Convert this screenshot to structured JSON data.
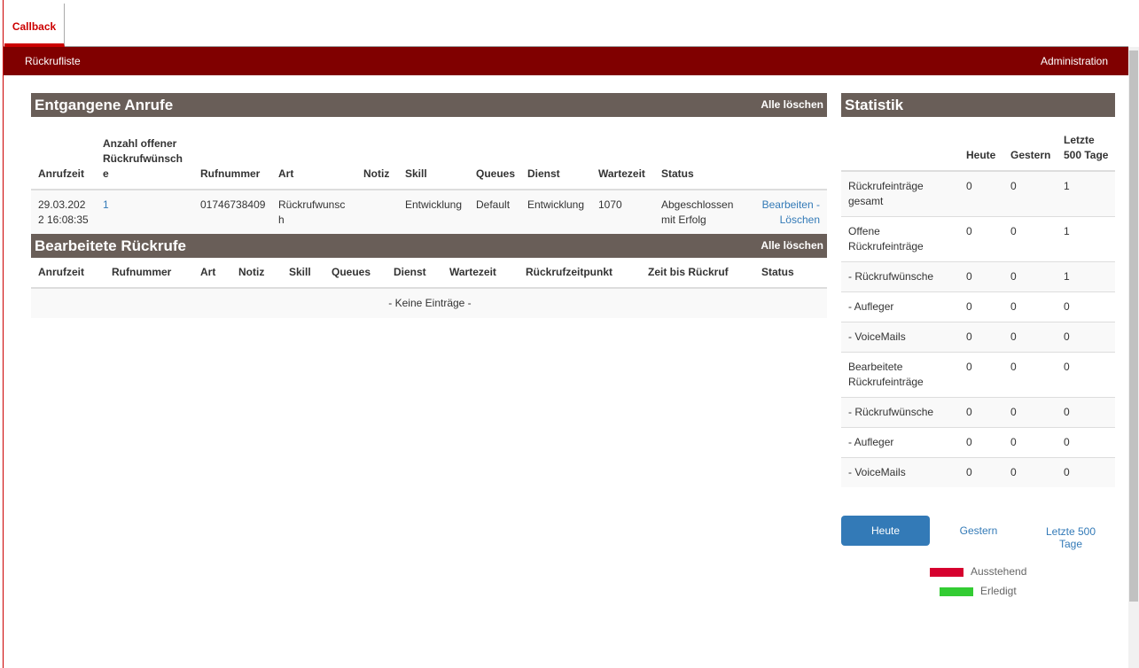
{
  "tabs": [
    {
      "label": "Callback"
    }
  ],
  "nav": {
    "left": "Rückrufliste",
    "right": "Administration"
  },
  "missed": {
    "title": "Entgangene Anrufe",
    "action": "Alle löschen",
    "headers": [
      "Anrufzeit",
      "Anzahl offener Rückrufwünsche",
      "Rufnummer",
      "Art",
      "Notiz",
      "Skill",
      "Queues",
      "Dienst",
      "Wartezeit",
      "Status"
    ],
    "rows": [
      {
        "anrufzeit": "29.03.2022 16:08:35",
        "anzahl": "1",
        "rufnummer": "01746738409",
        "art": "Rückrufwunsch",
        "notiz": "",
        "skill": "Entwicklung",
        "queues": "Default",
        "dienst": "Entwicklung",
        "wartezeit": "1070",
        "status": "Abgeschlossen mit Erfolg",
        "edit": "Bearbeiten",
        "sep": " -",
        "delete": "Löschen"
      }
    ]
  },
  "processed": {
    "title": "Bearbeitete Rückrufe",
    "action": "Alle löschen",
    "headers": [
      "Anrufzeit",
      "Rufnummer",
      "Art",
      "Notiz",
      "Skill",
      "Queues",
      "Dienst",
      "Wartezeit",
      "Rückrufzeitpunkt",
      "Zeit bis Rückruf",
      "Status"
    ],
    "empty": "- Keine Einträge -"
  },
  "stats": {
    "title": "Statistik",
    "headers": [
      "",
      "Heute",
      "Gestern",
      "Letzte 500 Tage"
    ],
    "rows": [
      [
        "Rückrufeinträge gesamt",
        "0",
        "0",
        "1"
      ],
      [
        "Offene Rückrufeinträge",
        "0",
        "0",
        "1"
      ],
      [
        "- Rückrufwünsche",
        "0",
        "0",
        "1"
      ],
      [
        "- Aufleger",
        "0",
        "0",
        "0"
      ],
      [
        "- VoiceMails",
        "0",
        "0",
        "0"
      ],
      [
        "Bearbeitete Rückrufeinträge",
        "0",
        "0",
        "0"
      ],
      [
        "- Rückrufwünsche",
        "0",
        "0",
        "0"
      ],
      [
        "- Aufleger",
        "0",
        "0",
        "0"
      ],
      [
        "- VoiceMails",
        "0",
        "0",
        "0"
      ]
    ],
    "buttons": [
      "Heute",
      "Gestern",
      "Letzte 500 Tage"
    ],
    "active_button": "Heute",
    "legend": [
      {
        "label": "Ausstehend",
        "color": "#d6002e"
      },
      {
        "label": "Erledigt",
        "color": "#33cc33"
      }
    ]
  },
  "colors": {
    "navbar": "#800000",
    "panel_header": "#695e58",
    "accent": "#337ab7",
    "tab": "#cc0000"
  }
}
